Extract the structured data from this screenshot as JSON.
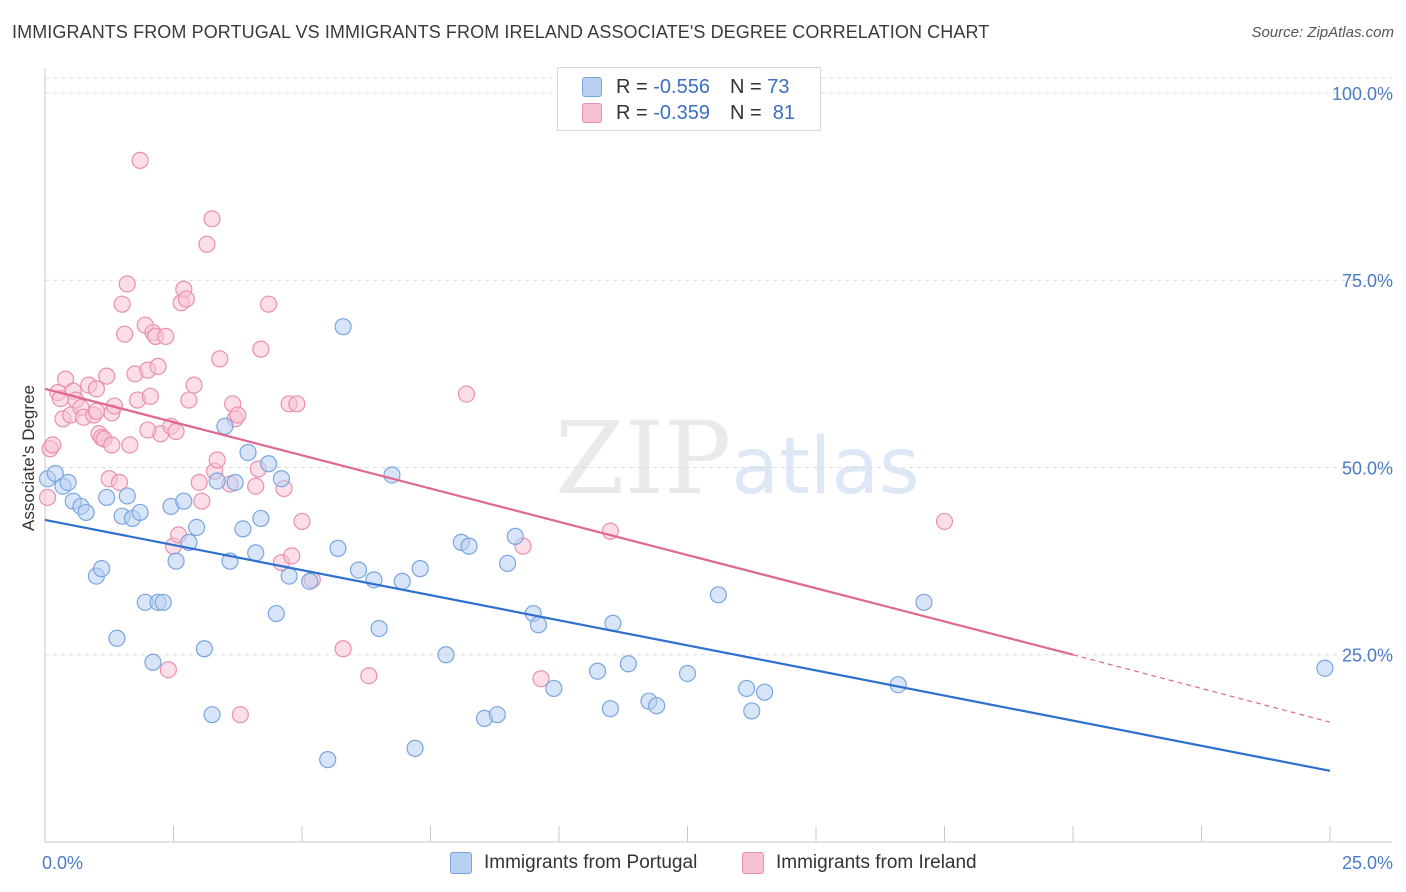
{
  "title": "IMMIGRANTS FROM PORTUGAL VS IMMIGRANTS FROM IRELAND ASSOCIATE'S DEGREE CORRELATION CHART",
  "source": "Source: ZipAtlas.com",
  "watermark": {
    "a": "ZIP",
    "b": "atlas"
  },
  "legend": {
    "portugal": {
      "r_label": "R = ",
      "r_value": "-0.556",
      "n_label": "N = ",
      "n_value": "73"
    },
    "ireland": {
      "r_label": "R = ",
      "r_value": "-0.359",
      "n_label": "N = ",
      "n_value": "81"
    }
  },
  "colors": {
    "portugal_fill": "#b8d0f2",
    "portugal_stroke": "#7aa5e0",
    "portugal_line": "#2f6fcf",
    "ireland_fill": "#f7c3d4",
    "ireland_stroke": "#eb8fb0",
    "ireland_line": "#e0678f"
  },
  "chart_data": {
    "type": "scatter",
    "title": "IMMIGRANTS FROM PORTUGAL VS IMMIGRANTS FROM IRELAND ASSOCIATE'S DEGREE CORRELATION CHART",
    "xlabel": "",
    "ylabel": "Associate's Degree",
    "xlim": [
      0,
      25
    ],
    "ylim": [
      0,
      102
    ],
    "x_tick_labels": [
      "0.0%",
      "25.0%"
    ],
    "y_ticks": [
      25,
      50,
      75,
      100
    ],
    "y_tick_labels": [
      "25.0%",
      "50.0%",
      "75.0%",
      "100.0%"
    ],
    "grid": true,
    "legend_position": "top-center",
    "series": [
      {
        "name": "Immigrants from Portugal",
        "trend": {
          "x": [
            0,
            25
          ],
          "y": [
            43.0,
            9.5
          ],
          "extrapolated_from": null
        },
        "points": [
          [
            0.05,
            48.5
          ],
          [
            0.2,
            49.2
          ],
          [
            0.35,
            47.5
          ],
          [
            0.45,
            48.0
          ],
          [
            0.55,
            45.5
          ],
          [
            0.7,
            44.8
          ],
          [
            0.8,
            44.0
          ],
          [
            1.0,
            35.5
          ],
          [
            1.1,
            36.5
          ],
          [
            1.2,
            46.0
          ],
          [
            1.4,
            27.2
          ],
          [
            1.5,
            43.5
          ],
          [
            1.6,
            46.2
          ],
          [
            1.7,
            43.2
          ],
          [
            1.85,
            44.0
          ],
          [
            1.95,
            32.0
          ],
          [
            2.1,
            24.0
          ],
          [
            2.2,
            32.0
          ],
          [
            2.3,
            32.0
          ],
          [
            2.45,
            44.8
          ],
          [
            2.55,
            37.5
          ],
          [
            2.7,
            45.5
          ],
          [
            2.8,
            40.0
          ],
          [
            2.95,
            42.0
          ],
          [
            3.1,
            25.8
          ],
          [
            3.25,
            17.0
          ],
          [
            3.35,
            48.2
          ],
          [
            3.5,
            55.5
          ],
          [
            3.6,
            37.5
          ],
          [
            3.7,
            48.0
          ],
          [
            3.85,
            41.8
          ],
          [
            3.95,
            52.0
          ],
          [
            4.1,
            38.6
          ],
          [
            4.2,
            43.2
          ],
          [
            4.35,
            50.5
          ],
          [
            4.5,
            30.5
          ],
          [
            4.6,
            48.5
          ],
          [
            4.75,
            35.5
          ],
          [
            5.15,
            34.8
          ],
          [
            5.5,
            11.0
          ],
          [
            5.7,
            39.2
          ],
          [
            5.8,
            68.8
          ],
          [
            6.1,
            36.3
          ],
          [
            6.4,
            35.0
          ],
          [
            6.5,
            28.5
          ],
          [
            6.75,
            49.0
          ],
          [
            6.95,
            34.8
          ],
          [
            7.2,
            12.5
          ],
          [
            7.3,
            36.5
          ],
          [
            7.8,
            25.0
          ],
          [
            8.1,
            40.0
          ],
          [
            8.25,
            39.5
          ],
          [
            8.55,
            16.5
          ],
          [
            8.8,
            17.0
          ],
          [
            9.0,
            37.2
          ],
          [
            9.15,
            40.8
          ],
          [
            9.5,
            30.5
          ],
          [
            9.6,
            29.0
          ],
          [
            9.9,
            20.5
          ],
          [
            10.75,
            22.8
          ],
          [
            11.0,
            17.8
          ],
          [
            11.05,
            29.2
          ],
          [
            11.35,
            23.8
          ],
          [
            11.75,
            18.8
          ],
          [
            11.9,
            18.2
          ],
          [
            12.5,
            22.5
          ],
          [
            13.1,
            33.0
          ],
          [
            13.65,
            20.5
          ],
          [
            13.75,
            17.5
          ],
          [
            14.0,
            20.0
          ],
          [
            16.6,
            21.0
          ],
          [
            17.1,
            32.0
          ],
          [
            24.9,
            23.2
          ]
        ]
      },
      {
        "name": "Immigrants from Ireland",
        "trend": {
          "x": [
            0,
            20
          ],
          "y": [
            60.5,
            25.0
          ],
          "dashed_extension": {
            "x": [
              20,
              25
            ],
            "y": [
              25.0,
              16.0
            ]
          }
        },
        "points": [
          [
            0.05,
            46.0
          ],
          [
            0.1,
            52.5
          ],
          [
            0.15,
            53.0
          ],
          [
            0.25,
            60.0
          ],
          [
            0.35,
            56.5
          ],
          [
            0.4,
            61.8
          ],
          [
            0.5,
            57.0
          ],
          [
            0.55,
            60.2
          ],
          [
            0.6,
            59.0
          ],
          [
            0.7,
            58.0
          ],
          [
            0.75,
            56.7
          ],
          [
            0.85,
            61.0
          ],
          [
            0.95,
            57.0
          ],
          [
            1.0,
            60.5
          ],
          [
            1.05,
            54.5
          ],
          [
            1.1,
            54.0
          ],
          [
            1.15,
            53.8
          ],
          [
            1.2,
            62.2
          ],
          [
            1.25,
            48.5
          ],
          [
            1.3,
            57.3
          ],
          [
            1.35,
            58.2
          ],
          [
            1.45,
            48.0
          ],
          [
            1.5,
            71.8
          ],
          [
            1.55,
            67.8
          ],
          [
            1.6,
            74.5
          ],
          [
            1.65,
            53.0
          ],
          [
            1.75,
            62.5
          ],
          [
            1.8,
            59.0
          ],
          [
            1.85,
            91.0
          ],
          [
            1.95,
            69.0
          ],
          [
            2.0,
            63.0
          ],
          [
            2.05,
            59.5
          ],
          [
            2.1,
            68.0
          ],
          [
            2.15,
            67.5
          ],
          [
            2.2,
            63.5
          ],
          [
            2.25,
            54.5
          ],
          [
            2.35,
            67.5
          ],
          [
            2.4,
            23.0
          ],
          [
            2.45,
            55.5
          ],
          [
            2.5,
            39.5
          ],
          [
            2.55,
            54.8
          ],
          [
            2.6,
            41.0
          ],
          [
            2.65,
            72.0
          ],
          [
            2.7,
            73.8
          ],
          [
            2.75,
            72.5
          ],
          [
            2.8,
            59.0
          ],
          [
            2.9,
            61.0
          ],
          [
            3.0,
            48.0
          ],
          [
            3.05,
            45.5
          ],
          [
            3.15,
            79.8
          ],
          [
            3.25,
            83.2
          ],
          [
            3.3,
            49.5
          ],
          [
            3.35,
            51.0
          ],
          [
            3.4,
            64.5
          ],
          [
            3.6,
            47.8
          ],
          [
            3.65,
            58.5
          ],
          [
            3.7,
            56.5
          ],
          [
            3.75,
            57.0
          ],
          [
            3.8,
            17.0
          ],
          [
            4.1,
            47.5
          ],
          [
            4.15,
            49.8
          ],
          [
            4.2,
            65.8
          ],
          [
            4.35,
            71.8
          ],
          [
            4.6,
            37.3
          ],
          [
            4.65,
            47.2
          ],
          [
            4.75,
            58.5
          ],
          [
            4.8,
            38.2
          ],
          [
            4.9,
            58.5
          ],
          [
            5.0,
            42.8
          ],
          [
            5.2,
            35.0
          ],
          [
            5.8,
            25.8
          ],
          [
            6.3,
            22.2
          ],
          [
            8.2,
            59.8
          ],
          [
            9.3,
            39.5
          ],
          [
            9.65,
            21.8
          ],
          [
            11.0,
            41.5
          ],
          [
            17.5,
            42.8
          ],
          [
            0.3,
            59.2
          ],
          [
            1.0,
            57.5
          ],
          [
            1.3,
            53.0
          ],
          [
            2.0,
            55.0
          ]
        ]
      }
    ]
  },
  "bottom_legend": {
    "portugal": "Immigrants from Portugal",
    "ireland": "Immigrants from Ireland"
  }
}
